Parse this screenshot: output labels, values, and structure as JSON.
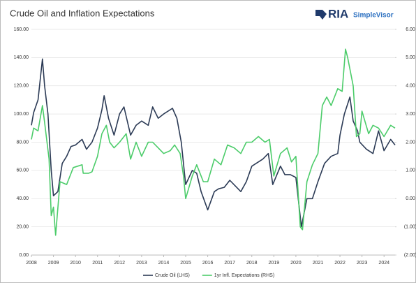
{
  "chart_data": {
    "type": "line",
    "title": "Crude Oil and Inflation Expectations",
    "logo": {
      "text": "RIA",
      "subtext": "SimpleVisor"
    },
    "xlim": [
      2008,
      2024.5
    ],
    "xticks": [
      2008,
      2009,
      2010,
      2011,
      2012,
      2013,
      2014,
      2015,
      2016,
      2017,
      2018,
      2019,
      2020,
      2021,
      2022,
      2023,
      2024
    ],
    "ylim": [
      0,
      160
    ],
    "yticks": [
      {
        "value": 0,
        "label": "0.00"
      },
      {
        "value": 20,
        "label": "20.00"
      },
      {
        "value": 40,
        "label": "40.00"
      },
      {
        "value": 60,
        "label": "60.00"
      },
      {
        "value": 80,
        "label": "80.00"
      },
      {
        "value": 100,
        "label": "100.00"
      },
      {
        "value": 120,
        "label": "120.00"
      },
      {
        "value": 140,
        "label": "140.00"
      },
      {
        "value": 160,
        "label": "160.00"
      }
    ],
    "y2lim": [
      -2,
      6
    ],
    "y2ticks": [
      {
        "value": -2,
        "label": "(2.00)"
      },
      {
        "value": -1,
        "label": "(1.00)"
      },
      {
        "value": 0,
        "label": "0.00"
      },
      {
        "value": 1,
        "label": "1.00"
      },
      {
        "value": 2,
        "label": "2.00"
      },
      {
        "value": 3,
        "label": "3.00"
      },
      {
        "value": 4,
        "label": "4.00"
      },
      {
        "value": 5,
        "label": "5.00"
      },
      {
        "value": 6,
        "label": "6.00"
      }
    ],
    "grid": true,
    "legend": "bottom",
    "series": [
      {
        "name": "Crude Oil (LHS)",
        "color": "#2b3a55",
        "axis": "y",
        "x": [
          2008.0,
          2008.1,
          2008.3,
          2008.5,
          2008.6,
          2008.75,
          2008.9,
          2009.0,
          2009.2,
          2009.4,
          2009.6,
          2009.8,
          2010.0,
          2010.3,
          2010.5,
          2010.75,
          2011.0,
          2011.2,
          2011.3,
          2011.5,
          2011.75,
          2012.0,
          2012.2,
          2012.5,
          2012.75,
          2013.0,
          2013.3,
          2013.5,
          2013.75,
          2014.0,
          2014.4,
          2014.6,
          2014.8,
          2015.0,
          2015.3,
          2015.5,
          2015.7,
          2016.0,
          2016.3,
          2016.5,
          2016.75,
          2017.0,
          2017.5,
          2017.75,
          2018.0,
          2018.5,
          2018.75,
          2018.95,
          2019.3,
          2019.5,
          2019.75,
          2020.0,
          2020.25,
          2020.5,
          2020.75,
          2021.0,
          2021.3,
          2021.6,
          2021.9,
          2022.0,
          2022.2,
          2022.45,
          2022.6,
          2022.8,
          2022.9,
          2023.2,
          2023.5,
          2023.75,
          2024.0,
          2024.3,
          2024.5
        ],
        "values": [
          92,
          101,
          110,
          139,
          120,
          100,
          60,
          42,
          45,
          65,
          70,
          77,
          78,
          82,
          75,
          80,
          90,
          103,
          113,
          97,
          85,
          100,
          105,
          85,
          92,
          95,
          92,
          105,
          97,
          100,
          104,
          97,
          80,
          50,
          60,
          58,
          45,
          32,
          45,
          47,
          48,
          53,
          45,
          52,
          63,
          68,
          72,
          50,
          63,
          57,
          57,
          55,
          20,
          40,
          40,
          52,
          65,
          70,
          72,
          85,
          100,
          112,
          95,
          88,
          80,
          75,
          72,
          88,
          74,
          82,
          78
        ]
      },
      {
        "name": "1yr Infl. Expectations (RHS)",
        "color": "#4ccc6a",
        "axis": "y2",
        "x": [
          2008.0,
          2008.1,
          2008.3,
          2008.5,
          2008.6,
          2008.8,
          2008.9,
          2009.0,
          2009.1,
          2009.3,
          2009.6,
          2009.9,
          2010.3,
          2010.35,
          2010.6,
          2010.75,
          2011.0,
          2011.2,
          2011.4,
          2011.55,
          2011.75,
          2012.0,
          2012.3,
          2012.5,
          2012.75,
          2013.0,
          2013.3,
          2013.5,
          2013.75,
          2014.0,
          2014.3,
          2014.5,
          2014.75,
          2014.9,
          2015.0,
          2015.3,
          2015.5,
          2015.8,
          2016.0,
          2016.3,
          2016.6,
          2016.9,
          2017.2,
          2017.5,
          2017.75,
          2018.0,
          2018.3,
          2018.6,
          2018.8,
          2019.0,
          2019.3,
          2019.6,
          2019.8,
          2020.0,
          2020.2,
          2020.3,
          2020.5,
          2020.75,
          2021.0,
          2021.2,
          2021.4,
          2021.6,
          2021.9,
          2022.1,
          2022.25,
          2022.35,
          2022.6,
          2022.75,
          2022.9,
          2023.0,
          2023.3,
          2023.5,
          2023.75,
          2024.0,
          2024.3,
          2024.5
        ],
        "values": [
          2.1,
          2.5,
          2.4,
          3.3,
          2.7,
          1.4,
          -0.6,
          -0.3,
          -1.3,
          0.6,
          0.5,
          1.1,
          1.2,
          0.9,
          0.9,
          0.95,
          1.5,
          2.3,
          2.6,
          2.0,
          1.8,
          2.0,
          2.3,
          1.4,
          2.0,
          1.5,
          2.0,
          2.0,
          1.8,
          1.6,
          1.7,
          1.9,
          1.6,
          0.8,
          0.0,
          0.8,
          1.2,
          0.6,
          0.6,
          1.4,
          1.2,
          1.9,
          1.8,
          1.6,
          2.0,
          2.0,
          2.2,
          2.0,
          2.1,
          0.8,
          1.6,
          1.8,
          1.3,
          1.5,
          -1.0,
          -1.1,
          0.6,
          1.2,
          1.6,
          3.3,
          3.6,
          3.3,
          3.9,
          3.8,
          5.3,
          5.0,
          4.0,
          2.2,
          2.3,
          3.1,
          2.3,
          2.6,
          2.5,
          2.2,
          2.6,
          2.5
        ]
      }
    ]
  }
}
